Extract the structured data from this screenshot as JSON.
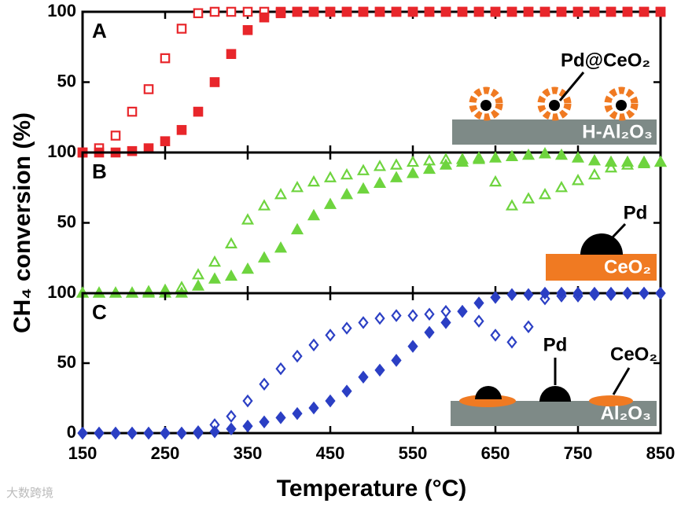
{
  "watermark": "大数跨境",
  "chart_data": [
    {
      "type": "scatter",
      "label": "A",
      "annotations": [
        "Pd@CeO₂",
        "H-Al₂O₃"
      ],
      "x": [
        150,
        170,
        190,
        210,
        230,
        250,
        270,
        290,
        310,
        330,
        350,
        370,
        390,
        410,
        430,
        450,
        470,
        490,
        510,
        530,
        550,
        570,
        590,
        610,
        630,
        650,
        670,
        690,
        710,
        730,
        750,
        770,
        790,
        810,
        830,
        850
      ],
      "xlim": [
        150,
        850
      ],
      "xticks": [
        150,
        250,
        350,
        450,
        550,
        650,
        750,
        850
      ],
      "ylim": [
        0,
        100
      ],
      "yticks": [
        50,
        100
      ],
      "series": [
        {
          "color": "#e8262b",
          "marker": "square",
          "filled": false,
          "values": [
            0,
            3,
            12,
            29,
            45,
            67,
            88,
            99,
            100,
            100,
            100,
            100,
            100,
            100,
            100,
            100,
            100,
            100,
            100,
            100,
            100,
            100,
            100,
            100,
            100,
            100,
            100,
            100,
            100,
            100,
            100,
            100,
            100,
            100,
            100,
            100
          ]
        },
        {
          "color": "#e8262b",
          "marker": "square",
          "filled": true,
          "values": [
            0,
            0,
            0,
            1,
            3,
            8,
            16,
            29,
            50,
            70,
            87,
            96,
            99,
            100,
            100,
            100,
            100,
            100,
            100,
            100,
            100,
            100,
            100,
            100,
            100,
            100,
            100,
            100,
            100,
            100,
            100,
            100,
            100,
            100,
            100,
            100
          ]
        }
      ]
    },
    {
      "type": "scatter",
      "label": "B",
      "annotations": [
        "Pd",
        "CeO₂"
      ],
      "ylabel": "CH₄ conversion (%)",
      "x": [
        150,
        170,
        190,
        210,
        230,
        250,
        270,
        290,
        310,
        330,
        350,
        370,
        390,
        410,
        430,
        450,
        470,
        490,
        510,
        530,
        550,
        570,
        590,
        610,
        630,
        650,
        670,
        690,
        710,
        730,
        750,
        770,
        790,
        810,
        830,
        850
      ],
      "xlim": [
        150,
        850
      ],
      "xticks": [
        150,
        250,
        350,
        450,
        550,
        650,
        750,
        850
      ],
      "ylim": [
        0,
        100
      ],
      "yticks": [
        50,
        100
      ],
      "series": [
        {
          "color": "#6ed43e",
          "marker": "triangle",
          "filled": false,
          "values": [
            0,
            0,
            0,
            0,
            1,
            2,
            4,
            13,
            22,
            35,
            52,
            62,
            70,
            75,
            79,
            82,
            84,
            87,
            90,
            91,
            93,
            94,
            95,
            95,
            96,
            79,
            62,
            67,
            70,
            75,
            80,
            84,
            89,
            91,
            92,
            93
          ]
        },
        {
          "color": "#6ed43e",
          "marker": "triangle",
          "filled": true,
          "values": [
            0,
            0,
            0,
            0,
            0,
            0,
            0,
            5,
            10,
            12,
            17,
            25,
            32,
            45,
            55,
            63,
            70,
            74,
            78,
            82,
            85,
            88,
            91,
            93,
            95,
            96,
            97,
            98,
            99,
            98,
            96,
            94,
            93,
            93,
            93,
            93
          ]
        }
      ]
    },
    {
      "type": "scatter",
      "label": "C",
      "annotations": [
        "Pd",
        "CeO₂",
        "Al₂O₃"
      ],
      "xlabel": "Temperature (°C)",
      "x": [
        150,
        170,
        190,
        210,
        230,
        250,
        270,
        290,
        310,
        330,
        350,
        370,
        390,
        410,
        430,
        450,
        470,
        490,
        510,
        530,
        550,
        570,
        590,
        610,
        630,
        650,
        670,
        690,
        710,
        730,
        750,
        770,
        790,
        810,
        830,
        850
      ],
      "xlim": [
        150,
        850
      ],
      "xticks": [
        150,
        250,
        350,
        450,
        550,
        650,
        750,
        850
      ],
      "ylim": [
        0,
        100
      ],
      "yticks": [
        0,
        50,
        100
      ],
      "series": [
        {
          "color": "#2b3fc4",
          "marker": "diamond",
          "filled": false,
          "values": [
            0,
            0,
            0,
            0,
            0,
            0,
            0,
            1,
            6,
            12,
            23,
            35,
            46,
            55,
            63,
            70,
            75,
            79,
            82,
            84,
            84,
            85,
            87,
            87,
            80,
            70,
            65,
            76,
            96,
            98,
            98,
            99,
            99,
            100,
            100,
            100
          ]
        },
        {
          "color": "#2b3fc4",
          "marker": "diamond",
          "filled": true,
          "values": [
            0,
            0,
            0,
            0,
            0,
            0,
            0,
            0,
            1,
            3,
            5,
            8,
            11,
            14,
            18,
            23,
            30,
            40,
            45,
            52,
            62,
            72,
            79,
            87,
            93,
            97,
            99,
            99,
            100,
            100,
            100,
            100,
            100,
            100,
            100,
            100
          ]
        }
      ]
    }
  ]
}
